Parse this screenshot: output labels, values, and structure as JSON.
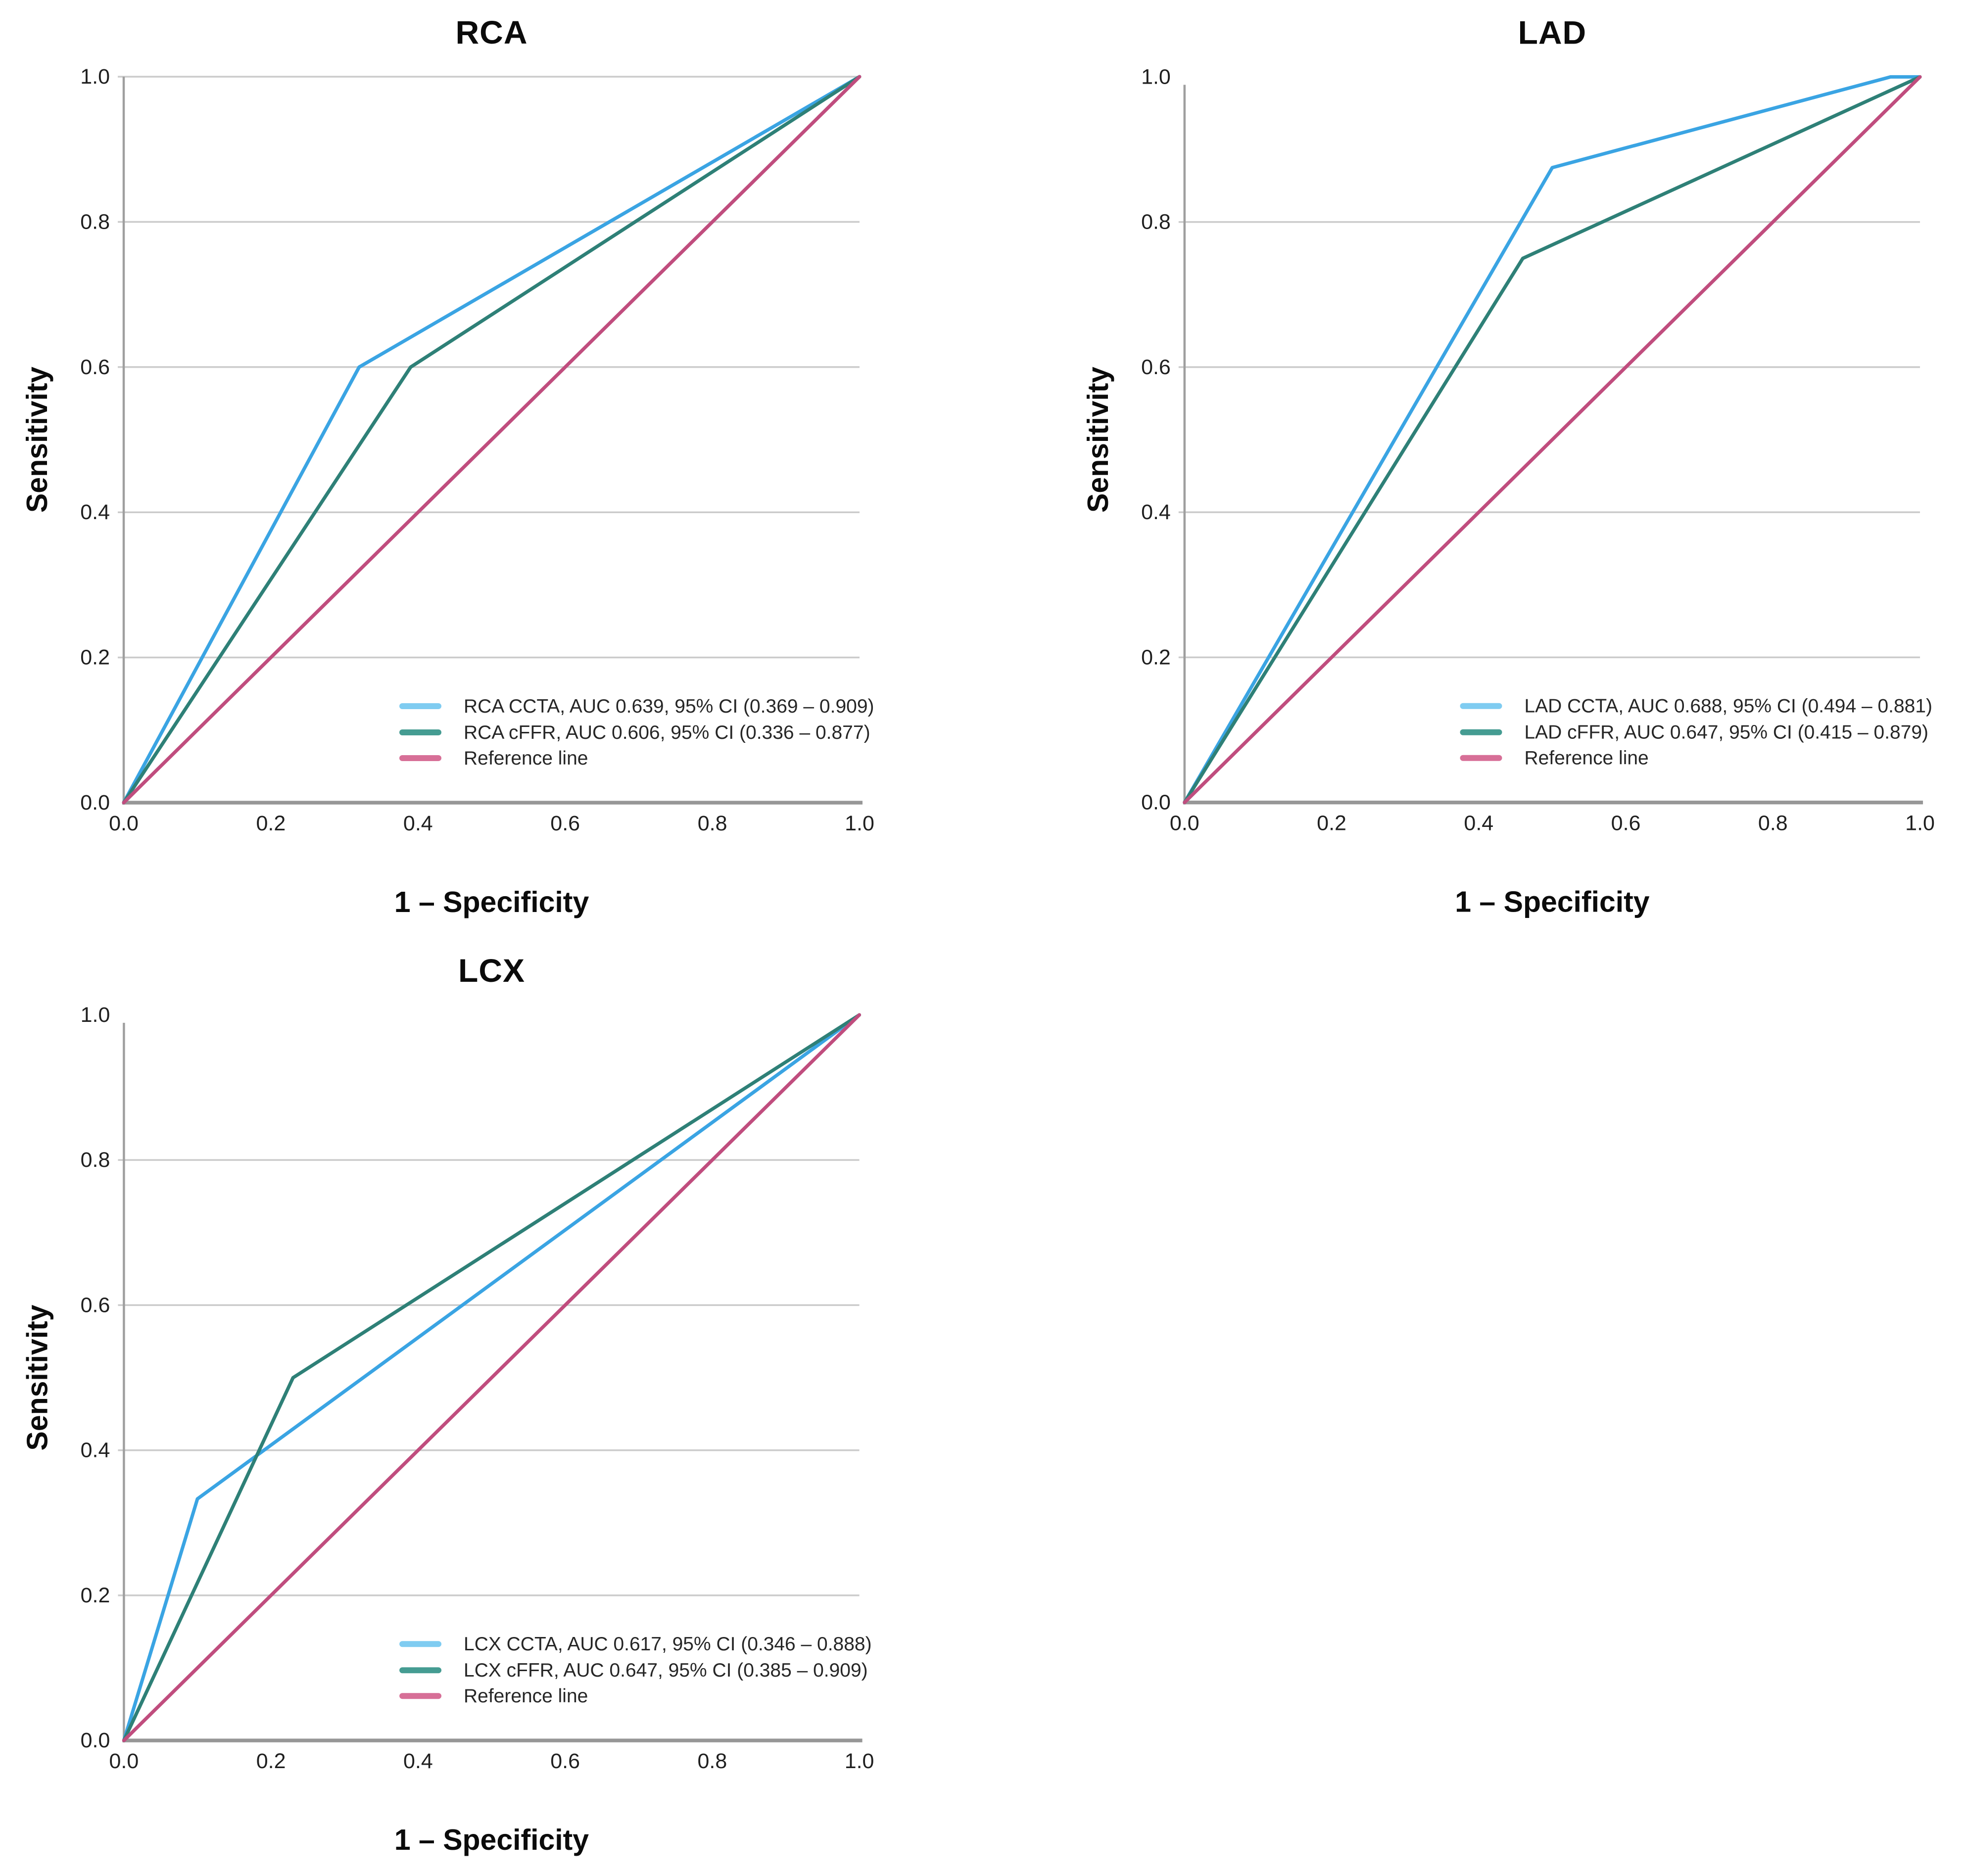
{
  "figure": {
    "background": "#ffffff",
    "empty_cell": "bottom-right"
  },
  "chart_data": [
    {
      "id": "rca",
      "type": "line",
      "title": "RCA",
      "xlabel": "1 – Specificity",
      "ylabel": "Sensitivity",
      "xlim": [
        0,
        1
      ],
      "ylim": [
        0,
        1
      ],
      "x_tick_values": [
        0,
        0.2,
        0.4,
        0.6,
        0.8,
        1
      ],
      "x_tick_labels": [
        "0.0",
        "0.2",
        "0.4",
        "0.6",
        "0.8",
        "1.0"
      ],
      "y_tick_values": [
        0,
        0.2,
        0.4,
        0.6,
        0.8,
        1
      ],
      "y_tick_labels": [
        "0.0",
        "0.2",
        "0.4",
        "0.6",
        "0.8",
        "1.0"
      ],
      "grid_levels": [
        0.2,
        0.4,
        0.6,
        0.8,
        1
      ],
      "grid": "horizontal",
      "legend_position": "inside-lower-right",
      "series": [
        {
          "name": "RCA CCTA",
          "legend": "RCA CCTA, AUC 0.639, 95% CI (0.369 – 0.909)",
          "auc": 0.639,
          "ci_95": [
            0.369,
            0.909
          ],
          "color": "#3aa4e3",
          "swatch_color": "#7fccf1",
          "points": [
            [
              0,
              0
            ],
            [
              0.32,
              0.6
            ],
            [
              1,
              1
            ]
          ]
        },
        {
          "name": "RCA cFFR",
          "legend": "RCA cFFR, AUC 0.606, 95% CI (0.336 – 0.877)",
          "auc": 0.606,
          "ci_95": [
            0.336,
            0.877
          ],
          "color": "#2e8077",
          "swatch_color": "#459c92",
          "points": [
            [
              0,
              0
            ],
            [
              0.39,
              0.6
            ],
            [
              1,
              1
            ]
          ]
        },
        {
          "name": "Reference line",
          "legend": "Reference line",
          "color": "#c04d7e",
          "swatch_color": "#d76f97",
          "points": [
            [
              0,
              0
            ],
            [
              1,
              1
            ]
          ]
        }
      ]
    },
    {
      "id": "lad",
      "type": "line",
      "title": "LAD",
      "xlabel": "1 – Specificity",
      "ylabel": "Sensitivity",
      "xlim": [
        0,
        1
      ],
      "ylim": [
        0,
        1
      ],
      "x_tick_values": [
        0,
        0.2,
        0.4,
        0.6,
        0.8,
        1
      ],
      "x_tick_labels": [
        "0.0",
        "0.2",
        "0.4",
        "0.6",
        "0.8",
        "1.0"
      ],
      "y_tick_values": [
        0,
        0.2,
        0.4,
        0.6,
        0.8,
        1
      ],
      "y_tick_labels": [
        "0.0",
        "0.2",
        "0.4",
        "0.6",
        "0.8",
        "1.0"
      ],
      "grid_levels": [
        0.2,
        0.4,
        0.6,
        0.8
      ],
      "grid": "horizontal",
      "legend_position": "inside-lower-right",
      "series": [
        {
          "name": "LAD CCTA",
          "legend": "LAD CCTA, AUC 0.688, 95% CI (0.494 – 0.881)",
          "auc": 0.688,
          "ci_95": [
            0.494,
            0.881
          ],
          "color": "#3aa4e3",
          "swatch_color": "#7fccf1",
          "points": [
            [
              0,
              0
            ],
            [
              0.5,
              0.875
            ],
            [
              0.96,
              1
            ],
            [
              1,
              1
            ]
          ]
        },
        {
          "name": "LAD cFFR",
          "legend": "LAD cFFR, AUC 0.647, 95% CI (0.415 – 0.879)",
          "auc": 0.647,
          "ci_95": [
            0.415,
            0.879
          ],
          "color": "#2e8077",
          "swatch_color": "#459c92",
          "points": [
            [
              0,
              0
            ],
            [
              0.46,
              0.75
            ],
            [
              1,
              1
            ]
          ]
        },
        {
          "name": "Reference line",
          "legend": "Reference line",
          "color": "#c04d7e",
          "swatch_color": "#d76f97",
          "points": [
            [
              0,
              0
            ],
            [
              1,
              1
            ]
          ]
        }
      ]
    },
    {
      "id": "lcx",
      "type": "line",
      "title": "LCX",
      "xlabel": "1 – Specificity",
      "ylabel": "Sensitivity",
      "xlim": [
        0,
        1
      ],
      "ylim": [
        0,
        1
      ],
      "x_tick_values": [
        0,
        0.2,
        0.4,
        0.6,
        0.8,
        1
      ],
      "x_tick_labels": [
        "0.0",
        "0.2",
        "0.4",
        "0.6",
        "0.8",
        "1.0"
      ],
      "y_tick_values": [
        0,
        0.2,
        0.4,
        0.6,
        0.8,
        1
      ],
      "y_tick_labels": [
        "0.0",
        "0.2",
        "0.4",
        "0.6",
        "0.8",
        "1.0"
      ],
      "grid_levels": [
        0.2,
        0.4,
        0.6,
        0.8
      ],
      "grid": "horizontal",
      "legend_position": "inside-lower-right",
      "series": [
        {
          "name": "LCX CCTA",
          "legend": "LCX CCTA, AUC 0.617, 95% CI (0.346 – 0.888)",
          "auc": 0.617,
          "ci_95": [
            0.346,
            0.888
          ],
          "color": "#3aa4e3",
          "swatch_color": "#7fccf1",
          "points": [
            [
              0,
              0
            ],
            [
              0.1,
              0.333
            ],
            [
              1,
              1
            ]
          ]
        },
        {
          "name": "LCX cFFR",
          "legend": "LCX cFFR, AUC 0.647, 95% CI (0.385 – 0.909)",
          "auc": 0.647,
          "ci_95": [
            0.385,
            0.909
          ],
          "color": "#2e8077",
          "swatch_color": "#459c92",
          "points": [
            [
              0,
              0
            ],
            [
              0.23,
              0.5
            ],
            [
              1,
              1
            ]
          ]
        },
        {
          "name": "Reference line",
          "legend": "Reference line",
          "color": "#c04d7e",
          "swatch_color": "#d76f97",
          "points": [
            [
              0,
              0
            ],
            [
              1,
              1
            ]
          ]
        }
      ]
    }
  ]
}
